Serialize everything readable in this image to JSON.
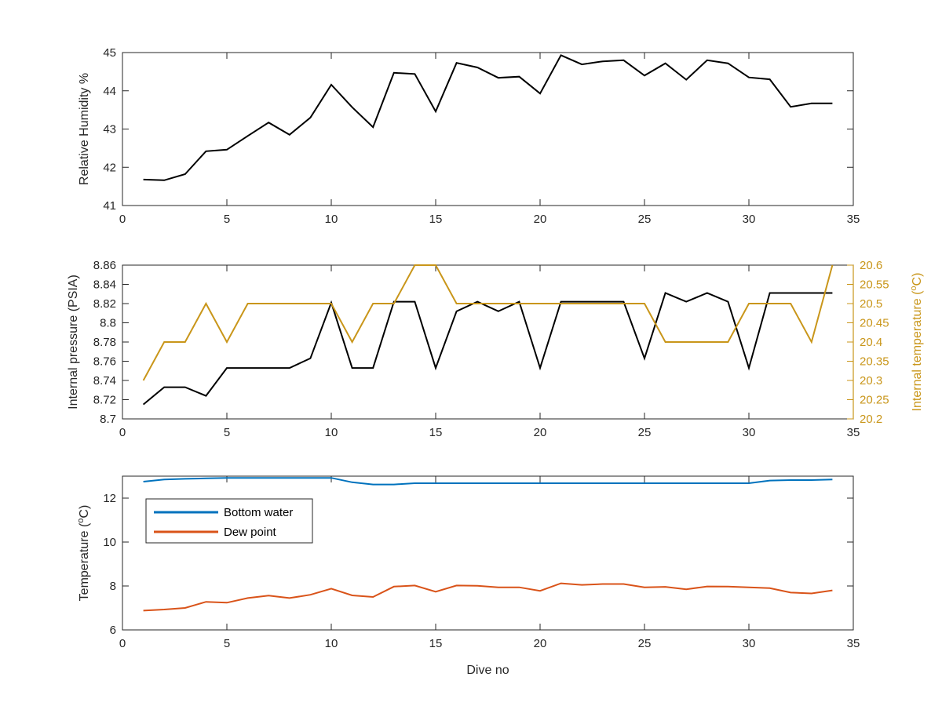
{
  "chart_data": [
    {
      "type": "line",
      "xlabel": "",
      "ylabel": "Relative Humidity %",
      "xlim": [
        0,
        35
      ],
      "ylim": [
        41,
        45
      ],
      "xticks": [
        0,
        5,
        10,
        15,
        20,
        25,
        30,
        35
      ],
      "yticks": [
        41,
        42,
        43,
        44,
        45
      ],
      "ytick_labels": [
        "41",
        "42",
        "43",
        "44",
        "45"
      ],
      "grid": false,
      "series": [
        {
          "axis": "left",
          "color": "#000000",
          "x": [
            1,
            2,
            3,
            4,
            5,
            6,
            7,
            8,
            9,
            10,
            11,
            12,
            13,
            14,
            15,
            16,
            17,
            18,
            19,
            20,
            21,
            22,
            23,
            24,
            25,
            26,
            27,
            28,
            29,
            30,
            31,
            32,
            33,
            34
          ],
          "values": [
            41.68,
            41.66,
            41.82,
            42.42,
            42.46,
            42.82,
            43.17,
            42.85,
            43.3,
            44.16,
            43.57,
            43.05,
            44.47,
            44.44,
            43.46,
            44.73,
            44.61,
            44.34,
            44.37,
            43.93,
            44.93,
            44.69,
            44.77,
            44.8,
            44.4,
            44.72,
            44.29,
            44.8,
            44.72,
            44.35,
            44.3,
            43.58,
            43.67,
            43.67
          ]
        }
      ]
    },
    {
      "type": "line",
      "xlabel": "",
      "ylabel": "Internal pressure (PSIA)",
      "ylabel_right": "Internal temperature (°C)",
      "xlim": [
        0,
        35
      ],
      "ylim": [
        8.7,
        8.86
      ],
      "ylim_right": [
        20.2,
        20.6
      ],
      "xticks": [
        0,
        5,
        10,
        15,
        20,
        25,
        30,
        35
      ],
      "yticks": [
        8.7,
        8.72,
        8.74,
        8.76,
        8.78,
        8.8,
        8.82,
        8.84,
        8.86
      ],
      "ytick_labels": [
        "8.7",
        "8.72",
        "8.74",
        "8.76",
        "8.78",
        "8.8",
        "8.82",
        "8.84",
        "8.86"
      ],
      "yticks_right": [
        20.2,
        20.25,
        20.3,
        20.35,
        20.4,
        20.45,
        20.5,
        20.55,
        20.6
      ],
      "ytick_labels_right": [
        "20.2",
        "20.25",
        "20.3",
        "20.35",
        "20.4",
        "20.45",
        "20.5",
        "20.55",
        "20.6"
      ],
      "right_axis_color": "#c9961a",
      "grid": false,
      "series": [
        {
          "axis": "left",
          "color": "#000000",
          "x": [
            1,
            2,
            3,
            4,
            5,
            6,
            7,
            8,
            9,
            10,
            11,
            12,
            13,
            14,
            15,
            16,
            17,
            18,
            19,
            20,
            21,
            22,
            23,
            24,
            25,
            26,
            27,
            28,
            29,
            30,
            31,
            32,
            33,
            34
          ],
          "values": [
            8.715,
            8.733,
            8.733,
            8.724,
            8.753,
            8.753,
            8.753,
            8.753,
            8.763,
            8.821,
            8.753,
            8.753,
            8.822,
            8.822,
            8.753,
            8.812,
            8.822,
            8.812,
            8.822,
            8.753,
            8.822,
            8.822,
            8.822,
            8.822,
            8.763,
            8.831,
            8.822,
            8.831,
            8.822,
            8.753,
            8.831,
            8.831,
            8.831,
            8.831
          ]
        },
        {
          "axis": "right",
          "color": "#c9961a",
          "x": [
            1,
            2,
            3,
            4,
            5,
            6,
            7,
            8,
            9,
            10,
            11,
            12,
            13,
            14,
            15,
            16,
            17,
            18,
            19,
            20,
            21,
            22,
            23,
            24,
            25,
            26,
            27,
            28,
            29,
            30,
            31,
            32,
            33,
            34
          ],
          "values": [
            20.3,
            20.4,
            20.4,
            20.5,
            20.4,
            20.5,
            20.5,
            20.5,
            20.5,
            20.5,
            20.4,
            20.5,
            20.5,
            20.6,
            20.6,
            20.5,
            20.5,
            20.5,
            20.5,
            20.5,
            20.5,
            20.5,
            20.5,
            20.5,
            20.5,
            20.4,
            20.4,
            20.4,
            20.4,
            20.5,
            20.5,
            20.5,
            20.4,
            20.6
          ]
        }
      ]
    },
    {
      "type": "line",
      "xlabel": "Dive no",
      "ylabel": "Temperature (°C)",
      "xlim": [
        0,
        35
      ],
      "ylim": [
        6,
        13
      ],
      "xticks": [
        0,
        5,
        10,
        15,
        20,
        25,
        30,
        35
      ],
      "yticks": [
        6,
        8,
        10,
        12
      ],
      "ytick_labels": [
        "6",
        "8",
        "10",
        "12"
      ],
      "grid": false,
      "legend_position": "top-left",
      "series": [
        {
          "name": "Bottom water",
          "axis": "left",
          "color": "#0072bd",
          "x": [
            1,
            2,
            3,
            4,
            5,
            6,
            7,
            8,
            9,
            10,
            11,
            12,
            13,
            14,
            15,
            16,
            17,
            18,
            19,
            20,
            21,
            22,
            23,
            24,
            25,
            26,
            27,
            28,
            29,
            30,
            31,
            32,
            33,
            34
          ],
          "values": [
            12.75,
            12.85,
            12.88,
            12.9,
            12.92,
            12.92,
            12.92,
            12.92,
            12.92,
            12.92,
            12.72,
            12.62,
            12.62,
            12.68,
            12.68,
            12.68,
            12.68,
            12.68,
            12.68,
            12.68,
            12.68,
            12.68,
            12.68,
            12.68,
            12.68,
            12.68,
            12.68,
            12.68,
            12.68,
            12.68,
            12.8,
            12.82,
            12.82,
            12.85
          ]
        },
        {
          "name": "Dew point",
          "axis": "left",
          "color": "#d95319",
          "x": [
            1,
            2,
            3,
            4,
            5,
            6,
            7,
            8,
            9,
            10,
            11,
            12,
            13,
            14,
            15,
            16,
            17,
            18,
            19,
            20,
            21,
            22,
            23,
            24,
            25,
            26,
            27,
            28,
            29,
            30,
            31,
            32,
            33,
            34
          ],
          "values": [
            6.88,
            6.93,
            7.0,
            7.28,
            7.24,
            7.45,
            7.56,
            7.45,
            7.6,
            7.88,
            7.57,
            7.5,
            7.97,
            8.02,
            7.74,
            8.02,
            8.01,
            7.94,
            7.94,
            7.78,
            8.12,
            8.05,
            8.09,
            8.09,
            7.94,
            7.96,
            7.85,
            7.98,
            7.97,
            7.94,
            7.9,
            7.7,
            7.66,
            7.8
          ]
        }
      ]
    }
  ]
}
